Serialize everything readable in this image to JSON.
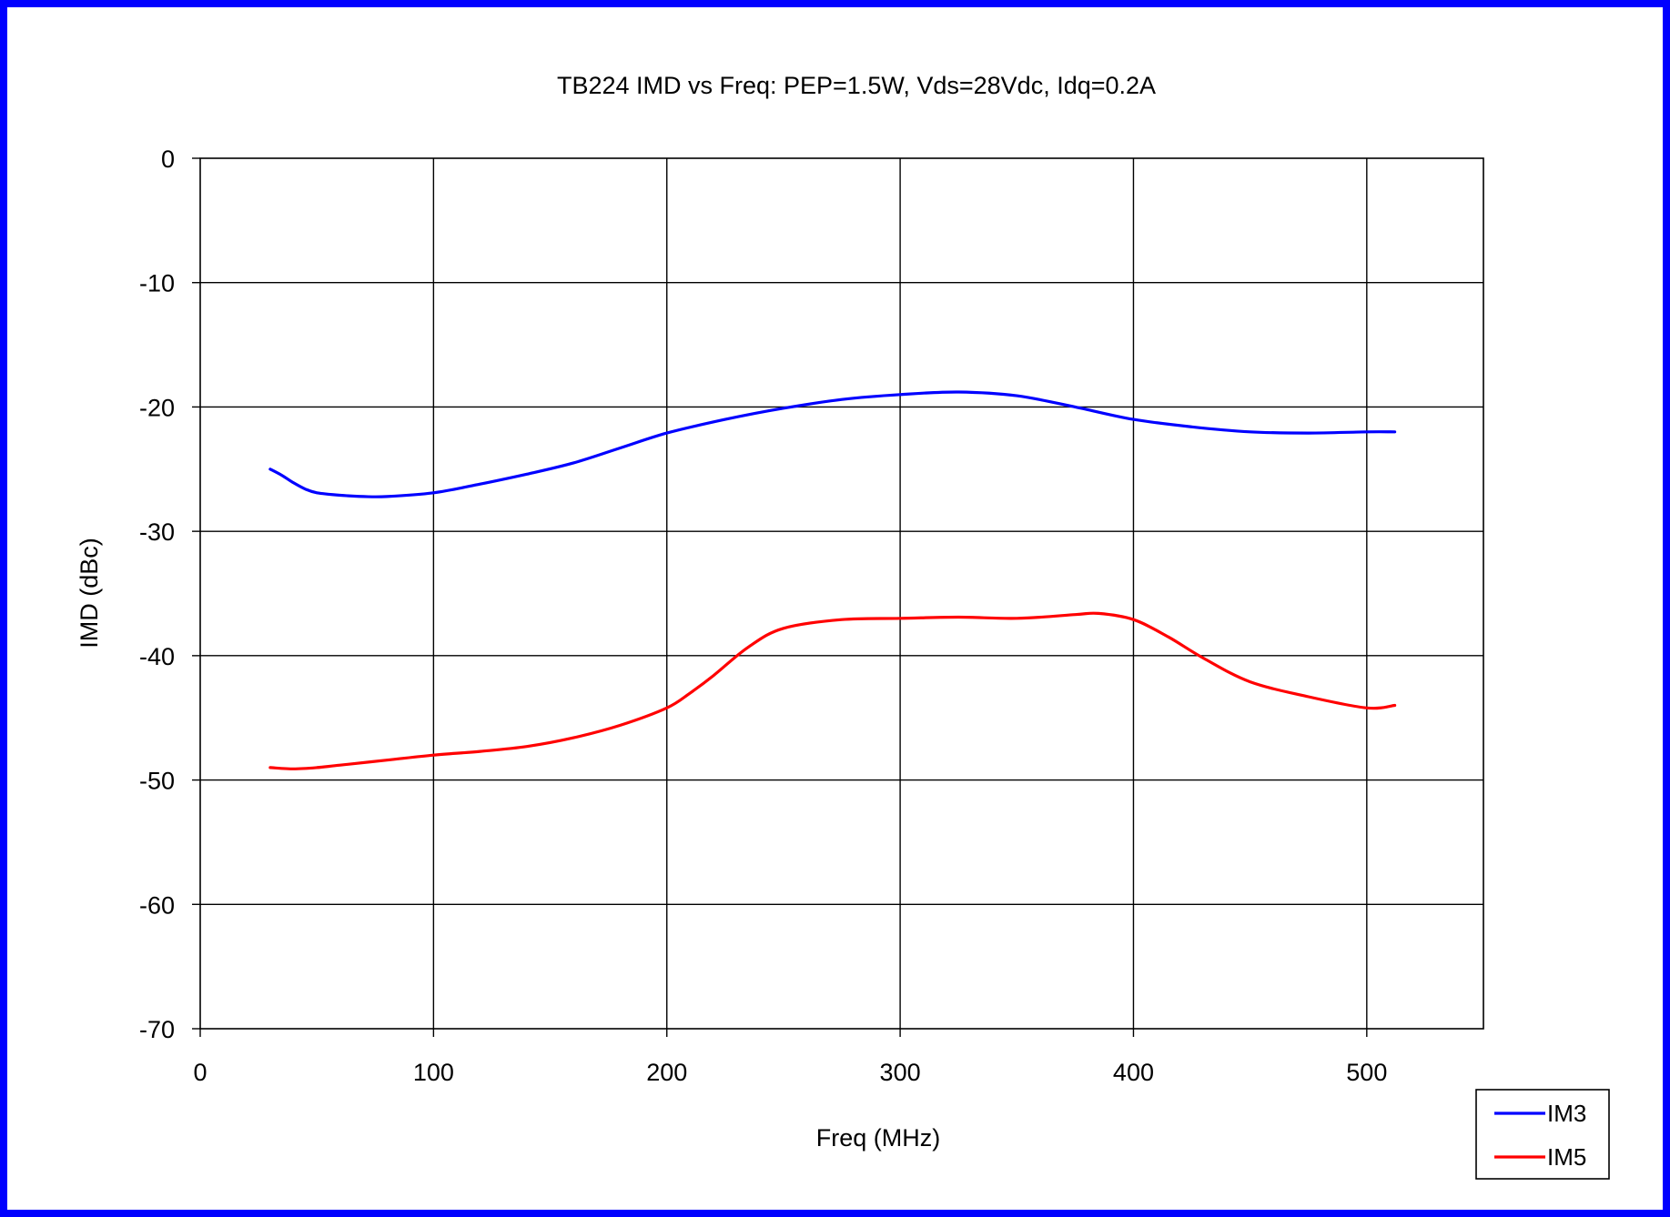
{
  "chart_data": {
    "type": "line",
    "title": "TB224 IMD vs Freq: PEP=1.5W, Vds=28Vdc, Idq=0.2A",
    "xlabel": "Freq (MHz)",
    "ylabel": "IMD (dBc)",
    "xlim": [
      0,
      550
    ],
    "ylim": [
      -70,
      0
    ],
    "xticks": [
      0,
      100,
      200,
      300,
      400,
      500
    ],
    "yticks": [
      0,
      -10,
      -20,
      -30,
      -40,
      -50,
      -60,
      -70
    ],
    "xtick_labels": [
      "0",
      "100",
      "200",
      "300",
      "400",
      "500"
    ],
    "ytick_labels": [
      "0",
      "-10",
      "-20",
      "-30",
      "-40",
      "-50",
      "-60",
      "-70"
    ],
    "grid": true,
    "legend_position": "bottom-right",
    "series": [
      {
        "name": "IM3",
        "color": "#0000ff",
        "x": [
          30,
          35,
          40,
          45,
          50,
          60,
          70,
          80,
          100,
          120,
          140,
          160,
          180,
          200,
          225,
          250,
          275,
          300,
          325,
          350,
          375,
          400,
          425,
          450,
          475,
          500,
          512
        ],
        "y": [
          -25.0,
          -25.5,
          -26.1,
          -26.6,
          -26.9,
          -27.1,
          -27.2,
          -27.2,
          -26.9,
          -26.2,
          -25.4,
          -24.5,
          -23.3,
          -22.1,
          -21.0,
          -20.1,
          -19.4,
          -19.0,
          -18.8,
          -19.1,
          -20.0,
          -21.0,
          -21.6,
          -22.0,
          -22.1,
          -22.0,
          -22.0
        ]
      },
      {
        "name": "IM5",
        "color": "#ff0000",
        "x": [
          30,
          40,
          50,
          60,
          80,
          100,
          120,
          140,
          160,
          180,
          200,
          210,
          220,
          235,
          250,
          275,
          300,
          325,
          350,
          375,
          385,
          400,
          415,
          430,
          450,
          475,
          500,
          512
        ],
        "y": [
          -49.0,
          -49.1,
          -49.0,
          -48.8,
          -48.4,
          -48.0,
          -47.7,
          -47.3,
          -46.6,
          -45.6,
          -44.2,
          -43.0,
          -41.6,
          -39.3,
          -37.8,
          -37.1,
          -37.0,
          -36.9,
          -37.0,
          -36.7,
          -36.6,
          -37.1,
          -38.5,
          -40.2,
          -42.1,
          -43.3,
          -44.2,
          -44.0
        ]
      }
    ]
  }
}
